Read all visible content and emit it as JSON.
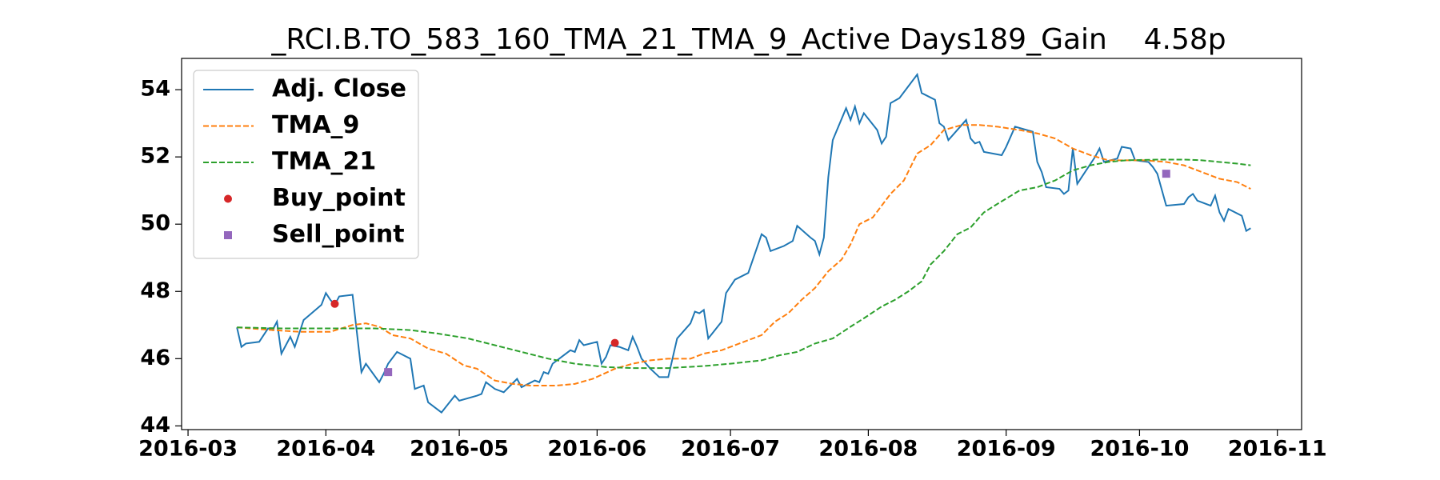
{
  "chart_data": {
    "type": "line",
    "title": "_RCI.B.TO_583_160_TMA_21_TMA_9_Active Days189_Gain    4.58p",
    "xlim": [
      59.55,
      311.45
    ],
    "xticks": [
      {
        "value": 61,
        "label": "2016-03"
      },
      {
        "value": 92,
        "label": "2016-04"
      },
      {
        "value": 122,
        "label": "2016-05"
      },
      {
        "value": 153,
        "label": "2016-06"
      },
      {
        "value": 183,
        "label": "2016-07"
      },
      {
        "value": 214,
        "label": "2016-08"
      },
      {
        "value": 245,
        "label": "2016-09"
      },
      {
        "value": 275,
        "label": "2016-10"
      },
      {
        "value": 306,
        "label": "2016-11"
      }
    ],
    "ylim": [
      43.89,
      54.93
    ],
    "yticks": [
      44,
      46,
      48,
      50,
      52,
      54
    ],
    "legend": "upper left",
    "series": [
      {
        "name": "Adj. Close",
        "color": "#1f77b4",
        "linestyle": "solid",
        "x": [
          72,
          73,
          74,
          77,
          79,
          80,
          81,
          82,
          84,
          85,
          87,
          91,
          92,
          93,
          94,
          95,
          98,
          100,
          101,
          104,
          105,
          106,
          108,
          111,
          112,
          114,
          115,
          118,
          121,
          122,
          126,
          127,
          128,
          130,
          132,
          135,
          136,
          139,
          140,
          141,
          142,
          143,
          145,
          147,
          148,
          149,
          150,
          153,
          154,
          155,
          156,
          158,
          160,
          161,
          162,
          163,
          165,
          167,
          169,
          171,
          174,
          175,
          176,
          177,
          178,
          181,
          182,
          184,
          187,
          190,
          191,
          192,
          195,
          197,
          198,
          201,
          202,
          203,
          204,
          205,
          206,
          209,
          210,
          211,
          212,
          213,
          216,
          217,
          218,
          219,
          221,
          223,
          225,
          226,
          229,
          230,
          231,
          232,
          236,
          237,
          238,
          239,
          240,
          244,
          245,
          247,
          251,
          252,
          253,
          254,
          257,
          258,
          259,
          260,
          261,
          262,
          265,
          266,
          267,
          270,
          271,
          273,
          274,
          277,
          278,
          279,
          281,
          285,
          286,
          287,
          288,
          291,
          292,
          293,
          294,
          295,
          298,
          299,
          300
        ],
        "values": [
          46.93,
          46.35,
          46.45,
          46.5,
          46.9,
          46.85,
          47.1,
          46.15,
          46.65,
          46.35,
          47.15,
          47.6,
          47.95,
          47.75,
          47.6,
          47.85,
          47.9,
          45.6,
          45.85,
          45.3,
          45.55,
          45.85,
          46.2,
          46.0,
          45.1,
          45.2,
          44.7,
          44.4,
          44.9,
          44.75,
          44.9,
          44.95,
          45.3,
          45.1,
          45.0,
          45.4,
          45.15,
          45.35,
          45.3,
          45.6,
          45.55,
          45.85,
          46.05,
          46.25,
          46.2,
          46.55,
          46.4,
          46.5,
          45.85,
          46.05,
          46.4,
          46.35,
          46.25,
          46.65,
          46.35,
          46.0,
          45.7,
          45.45,
          45.45,
          46.6,
          47.05,
          47.4,
          47.35,
          47.45,
          46.6,
          47.1,
          47.95,
          48.35,
          48.55,
          49.7,
          49.6,
          49.2,
          49.35,
          49.5,
          49.95,
          49.6,
          49.5,
          49.1,
          49.6,
          51.4,
          52.5,
          53.45,
          53.1,
          53.5,
          53.0,
          53.3,
          52.8,
          52.4,
          52.6,
          53.6,
          53.75,
          54.1,
          54.45,
          53.9,
          53.7,
          53.0,
          52.9,
          52.5,
          53.1,
          52.55,
          52.4,
          52.45,
          52.15,
          52.05,
          52.3,
          52.9,
          52.75,
          51.85,
          51.55,
          51.1,
          51.05,
          50.9,
          51.0,
          52.25,
          51.2,
          51.4,
          52.0,
          52.25,
          51.85,
          51.95,
          52.3,
          52.25,
          51.9,
          51.85,
          51.7,
          51.5,
          50.55,
          50.6,
          50.8,
          50.9,
          50.7,
          50.55,
          50.85,
          50.35,
          50.1,
          50.45,
          50.25,
          49.8,
          49.88
        ]
      },
      {
        "name": "TMA_9",
        "color": "#ff7f0e",
        "linestyle": "dashed",
        "x": [
          72,
          80,
          86,
          93,
          98,
          101,
          104,
          107,
          111,
          115,
          119,
          123,
          126,
          130,
          134,
          138,
          144,
          148,
          152,
          157,
          161,
          165,
          169,
          174,
          177,
          181,
          186,
          190,
          193,
          196,
          199,
          202,
          205,
          208,
          210,
          212,
          215,
          219,
          222,
          225,
          228,
          231,
          235,
          239,
          243,
          248,
          252,
          256,
          260,
          264,
          268,
          272,
          276,
          281,
          285,
          289,
          293,
          297,
          300
        ],
        "values": [
          46.93,
          46.85,
          46.8,
          46.8,
          47.0,
          47.05,
          46.95,
          46.7,
          46.6,
          46.3,
          46.15,
          45.8,
          45.7,
          45.35,
          45.25,
          45.2,
          45.2,
          45.25,
          45.4,
          45.7,
          45.85,
          45.95,
          46.0,
          46.0,
          46.15,
          46.25,
          46.5,
          46.7,
          47.1,
          47.35,
          47.75,
          48.1,
          48.6,
          48.95,
          49.4,
          50.0,
          50.2,
          50.9,
          51.3,
          52.1,
          52.35,
          52.8,
          52.95,
          52.95,
          52.9,
          52.8,
          52.7,
          52.55,
          52.25,
          52.05,
          51.9,
          51.9,
          51.9,
          51.85,
          51.75,
          51.55,
          51.35,
          51.25,
          51.05
        ]
      },
      {
        "name": "TMA_21",
        "color": "#2ca02c",
        "linestyle": "dashed",
        "x": [
          72,
          82,
          93,
          103,
          111,
          117,
          124,
          130,
          136,
          142,
          148,
          155,
          161,
          169,
          177,
          183,
          190,
          194,
          198,
          202,
          206,
          210,
          213,
          217,
          220,
          223,
          226,
          228,
          231,
          234,
          237,
          240,
          243,
          248,
          252,
          256,
          260,
          264,
          268,
          272,
          279,
          285,
          289,
          293,
          297,
          300
        ],
        "values": [
          46.93,
          46.9,
          46.9,
          46.9,
          46.85,
          46.75,
          46.6,
          46.4,
          46.2,
          46.0,
          45.85,
          45.75,
          45.72,
          45.72,
          45.78,
          45.85,
          45.95,
          46.1,
          46.2,
          46.45,
          46.6,
          46.95,
          47.2,
          47.55,
          47.75,
          48.0,
          48.3,
          48.8,
          49.2,
          49.7,
          49.9,
          50.35,
          50.6,
          51.0,
          51.1,
          51.3,
          51.6,
          51.75,
          51.85,
          51.9,
          51.92,
          51.92,
          51.9,
          51.85,
          51.8,
          51.75
        ]
      },
      {
        "name": "Buy_point",
        "color": "#d62728",
        "marker": "circle",
        "x": [
          94,
          157
        ],
        "values": [
          47.63,
          46.47
        ]
      },
      {
        "name": "Sell_point",
        "color": "#9467bd",
        "marker": "square",
        "x": [
          106,
          281
        ],
        "values": [
          45.6,
          51.5
        ]
      }
    ]
  }
}
